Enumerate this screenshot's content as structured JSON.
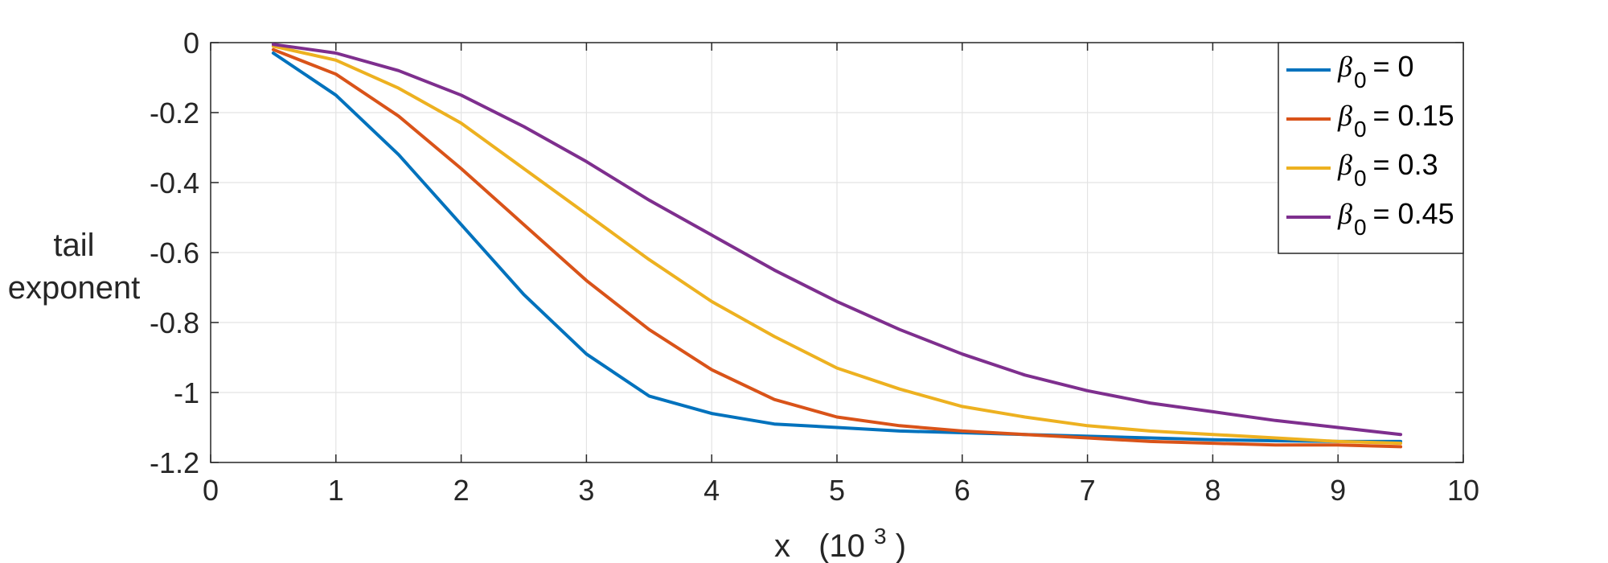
{
  "chart_data": {
    "type": "line",
    "xlabel": "x",
    "xlabel_unit_base": "(10",
    "xlabel_unit_exp": "3",
    "xlabel_unit_close": ")",
    "ylabel_lines": [
      "tail",
      "exponent"
    ],
    "xlim": [
      0,
      10
    ],
    "ylim": [
      -1.2,
      0
    ],
    "xticks": [
      0,
      1,
      2,
      3,
      4,
      5,
      6,
      7,
      8,
      9,
      10
    ],
    "xtick_labels": [
      "0",
      "1",
      "2",
      "3",
      "4",
      "5",
      "6",
      "7",
      "8",
      "9",
      "10"
    ],
    "yticks": [
      0,
      -0.2,
      -0.4,
      -0.6,
      -0.8,
      -1,
      -1.2
    ],
    "ytick_labels": [
      "0",
      "-0.2",
      "-0.4",
      "-0.6",
      "-0.8",
      "-1",
      "-1.2"
    ],
    "grid": true,
    "legend_position": "top-right",
    "legend_symbol": "β",
    "legend_subscript": "0",
    "x": [
      0.5,
      1.0,
      1.5,
      2.0,
      2.5,
      3.0,
      3.5,
      4.0,
      4.5,
      5.0,
      5.5,
      6.0,
      6.5,
      7.0,
      7.5,
      8.0,
      8.5,
      9.0,
      9.5
    ],
    "series": [
      {
        "name": "β0 = 0",
        "label_value": "= 0",
        "color": "#0072BD",
        "values": [
          -0.03,
          -0.15,
          -0.32,
          -0.52,
          -0.72,
          -0.89,
          -1.01,
          -1.06,
          -1.09,
          -1.1,
          -1.11,
          -1.115,
          -1.12,
          -1.125,
          -1.13,
          -1.135,
          -1.138,
          -1.14,
          -1.14
        ]
      },
      {
        "name": "β0 = 0.15",
        "label_value": "= 0.15",
        "color": "#D95319",
        "values": [
          -0.02,
          -0.09,
          -0.21,
          -0.36,
          -0.52,
          -0.68,
          -0.82,
          -0.935,
          -1.02,
          -1.07,
          -1.095,
          -1.11,
          -1.12,
          -1.13,
          -1.14,
          -1.145,
          -1.15,
          -1.15,
          -1.155
        ]
      },
      {
        "name": "β0 = 0.3",
        "label_value": "= 0.3",
        "color": "#EDB120",
        "values": [
          -0.01,
          -0.05,
          -0.13,
          -0.23,
          -0.36,
          -0.49,
          -0.62,
          -0.74,
          -0.84,
          -0.93,
          -0.99,
          -1.04,
          -1.07,
          -1.095,
          -1.11,
          -1.12,
          -1.13,
          -1.14,
          -1.145
        ]
      },
      {
        "name": "β0 = 0.45",
        "label_value": "= 0.45",
        "color": "#7E2F8E",
        "values": [
          -0.005,
          -0.03,
          -0.08,
          -0.15,
          -0.24,
          -0.34,
          -0.45,
          -0.55,
          -0.65,
          -0.74,
          -0.82,
          -0.89,
          -0.95,
          -0.995,
          -1.03,
          -1.055,
          -1.08,
          -1.1,
          -1.12
        ]
      }
    ]
  }
}
